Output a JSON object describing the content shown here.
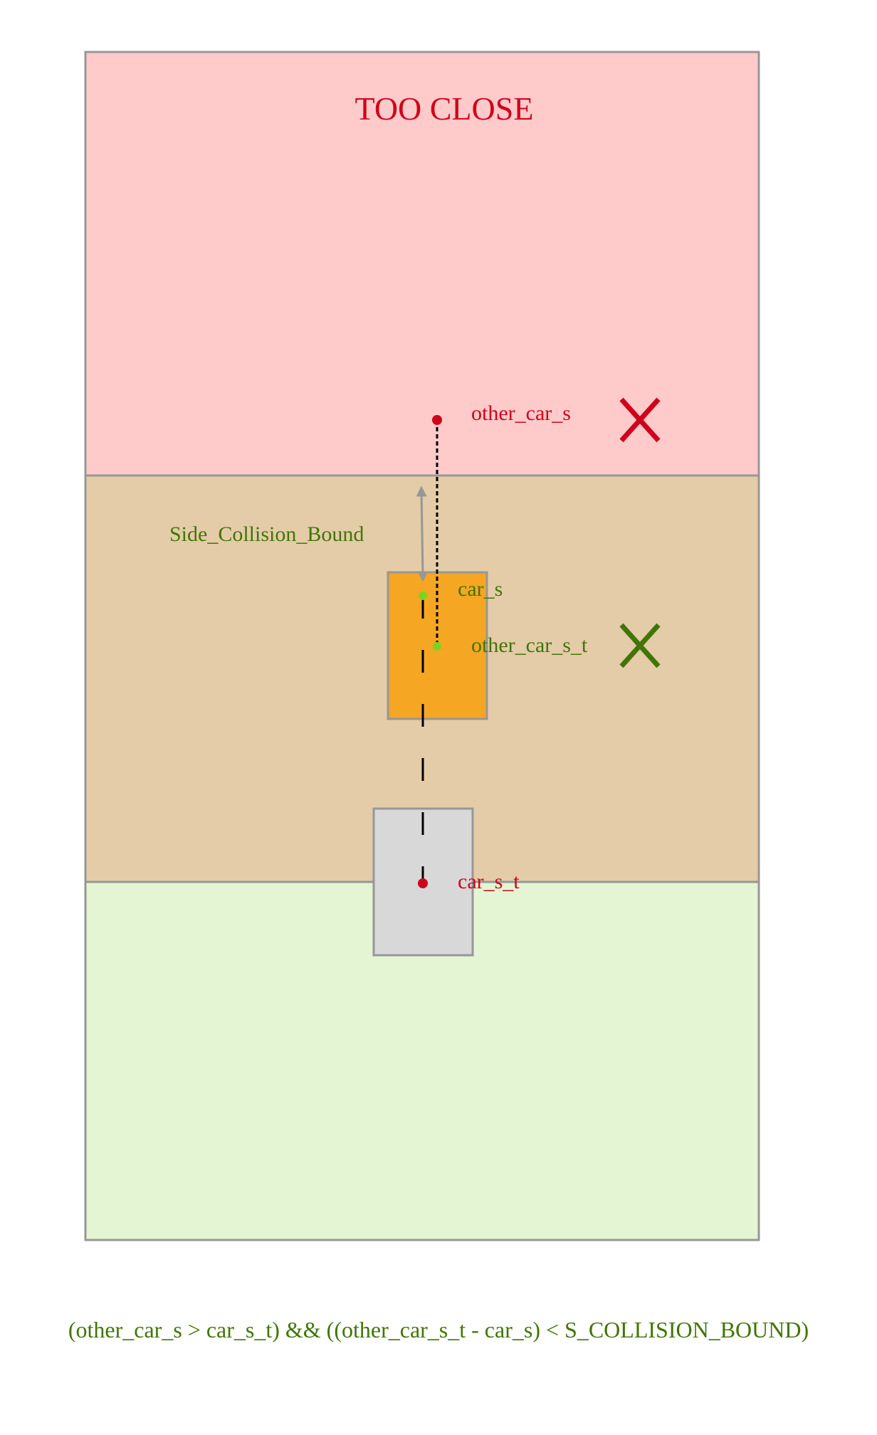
{
  "zones": {
    "top": {
      "title": "TOO CLOSE"
    }
  },
  "labels": {
    "other_car_s": "other_car_s",
    "car_s": "car_s",
    "other_car_s_t": "other_car_s_t",
    "car_s_t": "car_s_t",
    "side_collision_bound": "Side_Collision_Bound"
  },
  "formula": "(other_car_s > car_s_t) && ((other_car_s_t - car_s) < S_COLLISION_BOUND)",
  "colors": {
    "zone_too_close": "#fecaca",
    "zone_collision": "#e4cca8",
    "zone_safe": "#e3f5d2",
    "zone_border": "#979797",
    "other_car_fill": "#f5a623",
    "ego_car_fill": "#d8d8d8",
    "red_text": "#d0021b",
    "green_text": "#417505",
    "green_point": "#7ed321",
    "arrow_gray": "#979797"
  },
  "icons": {
    "mark_other_car_s": "x-mark-icon",
    "mark_other_car_s_t": "x-mark-icon"
  }
}
